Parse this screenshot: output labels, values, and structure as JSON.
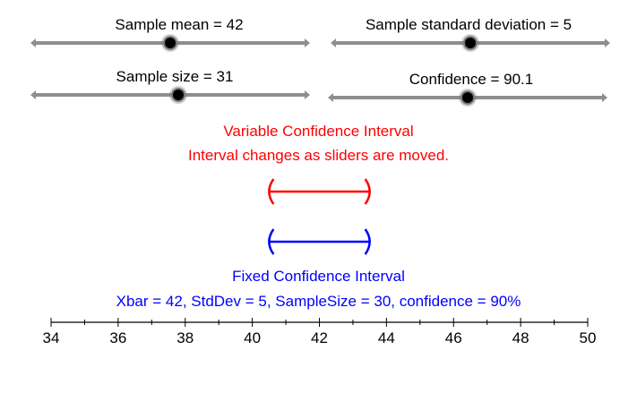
{
  "sliders": [
    {
      "label": "Sample mean = 42",
      "fraction": 0.5
    },
    {
      "label": "Sample standard deviation = 5",
      "fraction": 0.5
    },
    {
      "label": "Sample size = 31",
      "fraction": 0.53
    },
    {
      "label": "Confidence = 90.1",
      "fraction": 0.5
    }
  ],
  "variable_interval": {
    "title": "Variable Confidence Interval",
    "subtitle": "Interval changes as sliders are moved.",
    "color": "#ff0000",
    "lower": 40.5,
    "upper": 43.5
  },
  "fixed_interval": {
    "title": "Fixed Confidence Interval",
    "subtitle": "Xbar = 42, StdDev = 5, SampleSize = 30, confidence = 90%",
    "color": "#0000ff",
    "lower": 40.5,
    "upper": 43.5
  },
  "axis": {
    "min": 34,
    "max": 50,
    "ticks": [
      "34",
      "36",
      "38",
      "40",
      "42",
      "44",
      "46",
      "48",
      "50"
    ]
  },
  "colors": {
    "track": "#8e8e8e",
    "knob": "#000000"
  }
}
